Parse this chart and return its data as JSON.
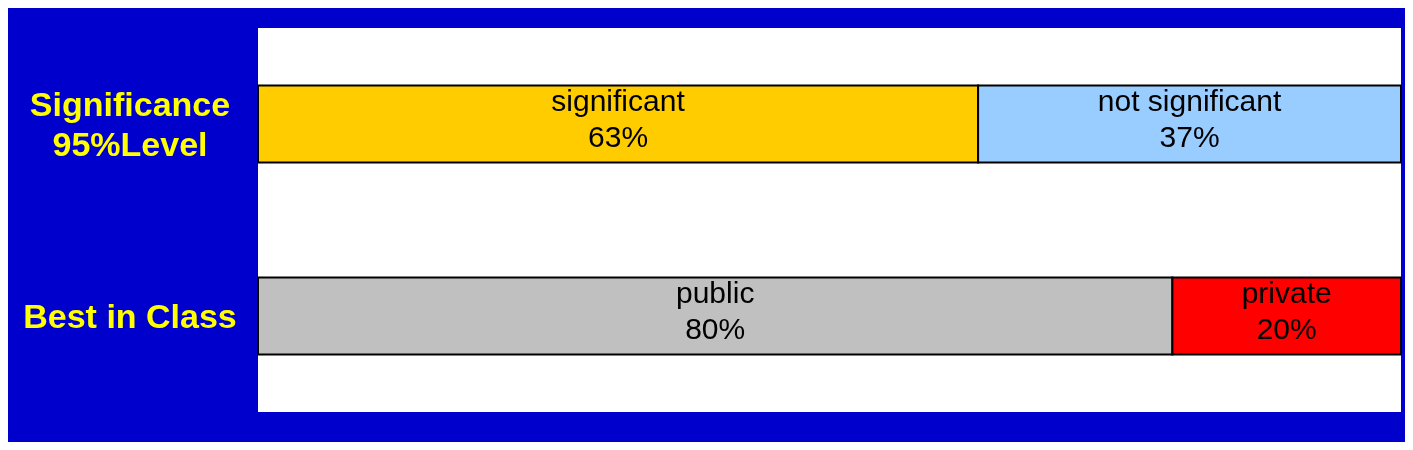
{
  "chart_data": {
    "type": "bar",
    "orientation": "horizontal",
    "stacked": true,
    "categories": [
      "Significance 95%Level",
      "Best in Class"
    ],
    "series": [
      {
        "name": "significant",
        "color": "#ffcc00",
        "values": [
          63,
          null
        ],
        "value_labels": [
          "63%",
          null
        ]
      },
      {
        "name": "not significant",
        "color": "#99ccff",
        "values": [
          37,
          null
        ],
        "value_labels": [
          "37%",
          null
        ]
      },
      {
        "name": "public",
        "color": "#c0c0c0",
        "values": [
          null,
          80
        ],
        "value_labels": [
          null,
          "80%"
        ]
      },
      {
        "name": "private",
        "color": "#ff0000",
        "values": [
          null,
          20
        ],
        "value_labels": [
          null,
          "20%"
        ]
      }
    ],
    "tick_labels": "y",
    "legend": false,
    "grid": false
  }
}
